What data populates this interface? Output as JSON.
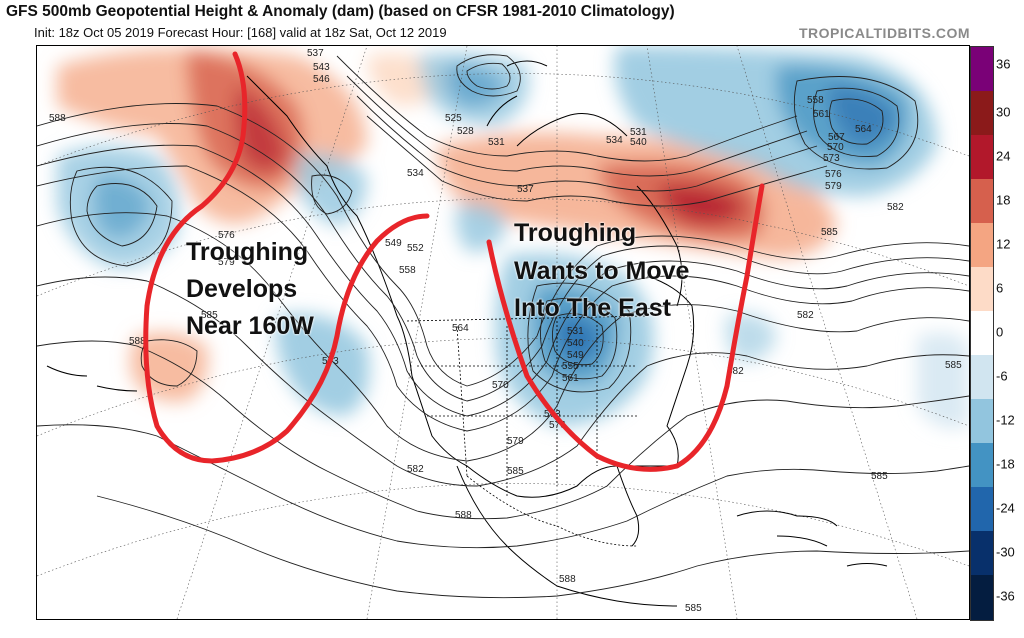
{
  "header": {
    "title": "GFS 500mb Geopotential Height & Anomaly (dam) (based on CFSR 1981-2010 Climatology)",
    "subtitle": "Init: 18z Oct 05 2019   Forecast Hour: [168]   valid at 18z Sat, Oct 12 2019",
    "watermark": "TROPICALTIDBITS.COM"
  },
  "colorbar": {
    "labels": [
      "36",
      "30",
      "24",
      "18",
      "12",
      "6",
      "0",
      "-6",
      "-12",
      "-18",
      "-24",
      "-30",
      "-36"
    ],
    "colors": [
      "#7a0177",
      "#8b1a1a",
      "#b2182b",
      "#d6604d",
      "#f4a582",
      "#fddbc7",
      "#ffffff",
      "#d1e5f0",
      "#92c5de",
      "#4393c3",
      "#2166ac",
      "#08306b",
      "#041d40"
    ]
  },
  "annotations": {
    "west_line1": "Troughing",
    "west_line2": "Develops",
    "west_line3": "Near 160W",
    "east_line1": "Troughing",
    "east_line2": "Wants to Move",
    "east_line3": "Into The East"
  },
  "contour_labels": [
    {
      "id": "c588a",
      "text": "588"
    },
    {
      "id": "c537",
      "text": "537"
    },
    {
      "id": "c543",
      "text": "543"
    },
    {
      "id": "c546",
      "text": "546"
    },
    {
      "id": "c525",
      "text": "525"
    },
    {
      "id": "c528",
      "text": "528"
    },
    {
      "id": "c531",
      "text": "531"
    },
    {
      "id": "c534a",
      "text": "534"
    },
    {
      "id": "c537b",
      "text": "537"
    },
    {
      "id": "c534b",
      "text": "534"
    },
    {
      "id": "c531b",
      "text": "531"
    },
    {
      "id": "c540",
      "text": "540"
    },
    {
      "id": "c558",
      "text": "558"
    },
    {
      "id": "c561",
      "text": "561"
    },
    {
      "id": "c564",
      "text": "564"
    },
    {
      "id": "c567",
      "text": "567"
    },
    {
      "id": "c570",
      "text": "570"
    },
    {
      "id": "c573",
      "text": "573"
    },
    {
      "id": "c576",
      "text": "576"
    },
    {
      "id": "c579",
      "text": "579"
    },
    {
      "id": "c582a",
      "text": "582"
    },
    {
      "id": "c585a",
      "text": "585"
    },
    {
      "id": "c576w",
      "text": "576"
    },
    {
      "id": "c579w",
      "text": "579"
    },
    {
      "id": "c585w",
      "text": "585"
    },
    {
      "id": "c588w",
      "text": "588"
    },
    {
      "id": "c549",
      "text": "549"
    },
    {
      "id": "c552",
      "text": "552"
    },
    {
      "id": "c558b",
      "text": "558"
    },
    {
      "id": "c573w",
      "text": "573"
    },
    {
      "id": "c564b",
      "text": "564"
    },
    {
      "id": "c570b",
      "text": "570"
    },
    {
      "id": "c579b",
      "text": "579"
    },
    {
      "id": "c582b",
      "text": "582"
    },
    {
      "id": "c585b",
      "text": "585"
    },
    {
      "id": "c573e",
      "text": "573"
    },
    {
      "id": "c576e",
      "text": "576"
    },
    {
      "id": "c531e",
      "text": "531"
    },
    {
      "id": "c540e",
      "text": "540"
    },
    {
      "id": "c549e",
      "text": "549"
    },
    {
      "id": "c555e",
      "text": "555"
    },
    {
      "id": "c561e",
      "text": "561"
    },
    {
      "id": "c582c",
      "text": "582"
    },
    {
      "id": "c585c",
      "text": "585"
    },
    {
      "id": "c585d",
      "text": "585"
    },
    {
      "id": "c588b",
      "text": "588"
    },
    {
      "id": "c588c",
      "text": "588"
    },
    {
      "id": "c585e",
      "text": "585"
    },
    {
      "id": "c582d",
      "text": "582"
    }
  ]
}
